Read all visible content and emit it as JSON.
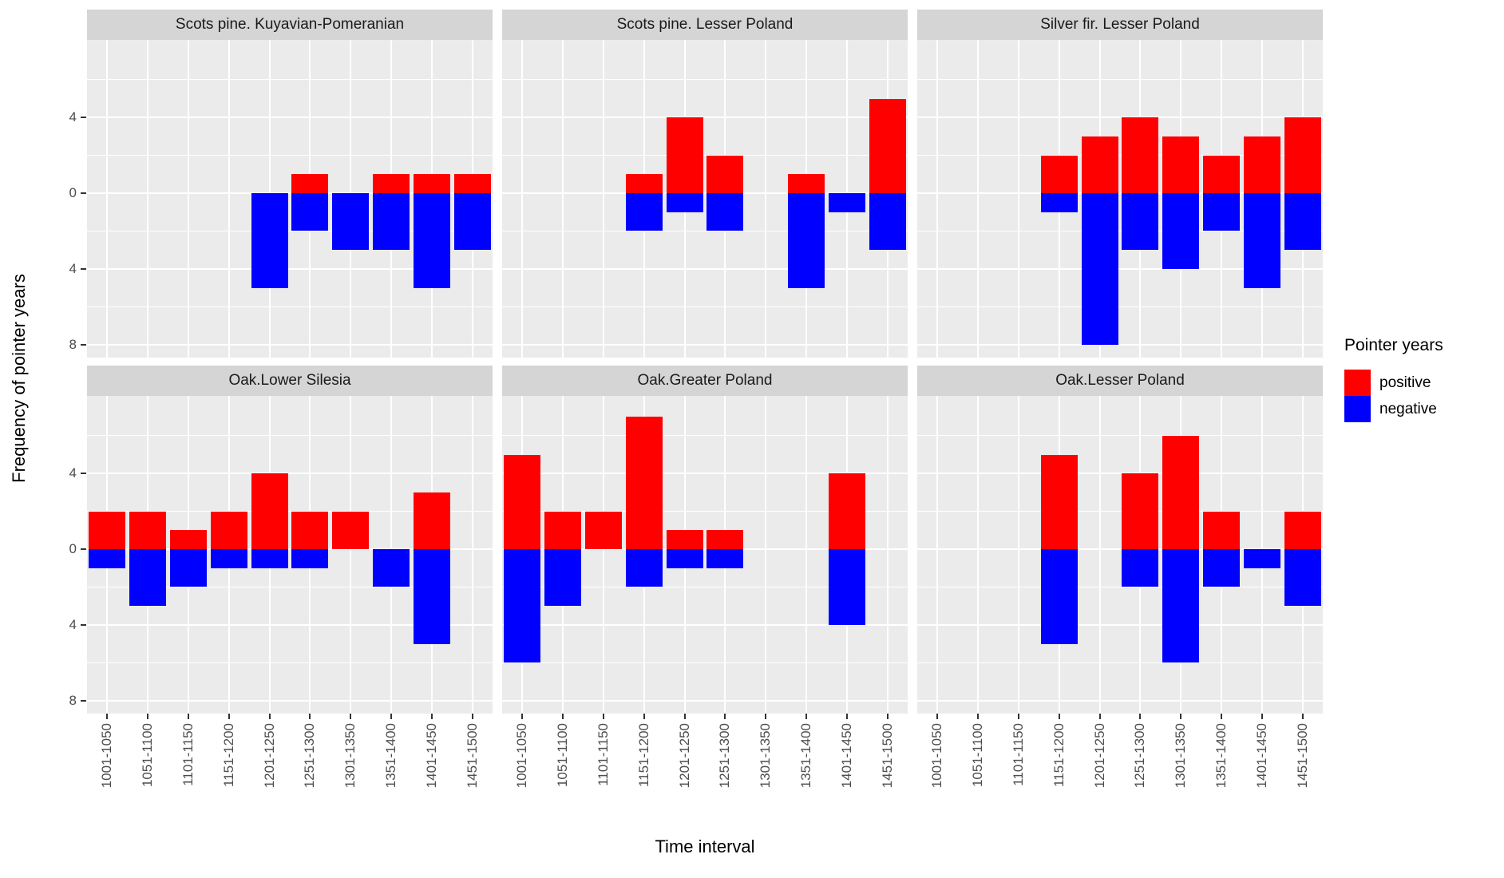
{
  "chart_data": {
    "type": "bar",
    "variant": "diverging-stacked-facets",
    "xlabel": "Time interval",
    "ylabel": "Frequency of pointer years",
    "categories": [
      "1001-1050",
      "1051-1100",
      "1101-1150",
      "1151-1200",
      "1201-1250",
      "1251-1300",
      "1301-1350",
      "1351-1400",
      "1401-1450",
      "1451-1500"
    ],
    "y_axis": {
      "labeled_breaks": [
        4,
        0,
        -4,
        -8
      ],
      "tick_labels": [
        "4",
        "0",
        "4",
        "8"
      ],
      "minor_breaks": [
        6,
        2,
        -2,
        -6
      ],
      "top": 7.9,
      "bottom": -8.9,
      "note": "negative bars drawn downward; labels show absolute values"
    },
    "legend": {
      "title": "Pointer years",
      "items": [
        {
          "label": "positive",
          "color": "#ff0000"
        },
        {
          "label": "negative",
          "color": "#0000ff"
        }
      ]
    },
    "grid": {
      "major_color": "#ffffff",
      "minor_color": "#ffffff",
      "panel_bg": "#ebebeb",
      "strip_bg": "#d5d5d5"
    },
    "facets": [
      {
        "label": "Scots pine. Kuyavian-Pomeranian",
        "row": 0,
        "col": 0,
        "positive": [
          0,
          0,
          0,
          0,
          0,
          1,
          0,
          1,
          1,
          1
        ],
        "negative": [
          0,
          0,
          0,
          0,
          5,
          2,
          3,
          3,
          5,
          3
        ]
      },
      {
        "label": "Scots pine. Lesser Poland",
        "row": 0,
        "col": 1,
        "positive": [
          0,
          0,
          0,
          1,
          4,
          2,
          0,
          1,
          0,
          5
        ],
        "negative": [
          0,
          0,
          0,
          2,
          1,
          2,
          0,
          5,
          1,
          3
        ]
      },
      {
        "label": "Silver fir. Lesser Poland",
        "row": 0,
        "col": 2,
        "positive": [
          0,
          0,
          0,
          2,
          3,
          4,
          3,
          2,
          3,
          4
        ],
        "negative": [
          0,
          0,
          0,
          1,
          8,
          3,
          4,
          2,
          5,
          3
        ]
      },
      {
        "label": "Oak.Lower Silesia",
        "row": 1,
        "col": 0,
        "positive": [
          2,
          2,
          1,
          2,
          4,
          2,
          2,
          0,
          3,
          0
        ],
        "negative": [
          1,
          3,
          2,
          1,
          1,
          1,
          0,
          2,
          5,
          0
        ]
      },
      {
        "label": "Oak.Greater Poland",
        "row": 1,
        "col": 1,
        "positive": [
          5,
          2,
          2,
          7,
          1,
          1,
          0,
          0,
          4,
          0
        ],
        "negative": [
          6,
          3,
          0,
          2,
          1,
          1,
          0,
          0,
          4,
          0
        ]
      },
      {
        "label": "Oak.Lesser Poland",
        "row": 1,
        "col": 2,
        "positive": [
          0,
          0,
          0,
          5,
          0,
          4,
          6,
          2,
          0,
          2
        ],
        "negative": [
          0,
          0,
          0,
          5,
          0,
          2,
          6,
          2,
          1,
          3
        ]
      }
    ]
  }
}
